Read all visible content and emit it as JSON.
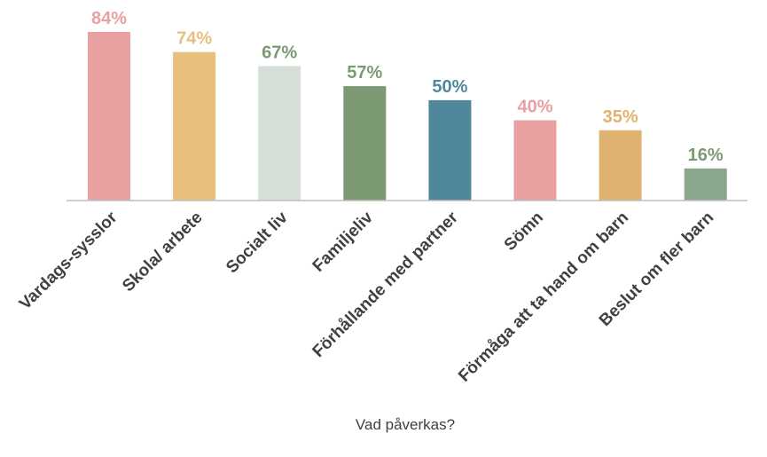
{
  "chart_data": {
    "type": "bar",
    "categories": [
      "Vardags-sysslor",
      "Skola/ arbete",
      "Socialt liv",
      "Familjeliv",
      "Förhållande med partner",
      "Sömn",
      "Förmåga att ta hand om barn",
      "Beslut om fler barn"
    ],
    "values": [
      84,
      74,
      67,
      57,
      50,
      40,
      35,
      16
    ],
    "value_labels": [
      "84%",
      "74%",
      "67%",
      "57%",
      "50%",
      "40%",
      "35%",
      "16%"
    ],
    "unit": "%",
    "xlabel": "Vad påverkas?",
    "ylabel": "",
    "ylim": [
      0,
      84
    ],
    "grid": false,
    "legend": "none",
    "bar_colors": [
      "#e8a0a0",
      "#e8c07d",
      "#d6e0d9",
      "#7b9a74",
      "#4f889c",
      "#e8a0a0",
      "#dfb36f",
      "#8aa68b"
    ],
    "label_colors": [
      "#e8a0a0",
      "#e8c07d",
      "#7b9a74",
      "#7b9a74",
      "#4f889c",
      "#e8a0a0",
      "#dfb36f",
      "#7b9a74"
    ]
  }
}
